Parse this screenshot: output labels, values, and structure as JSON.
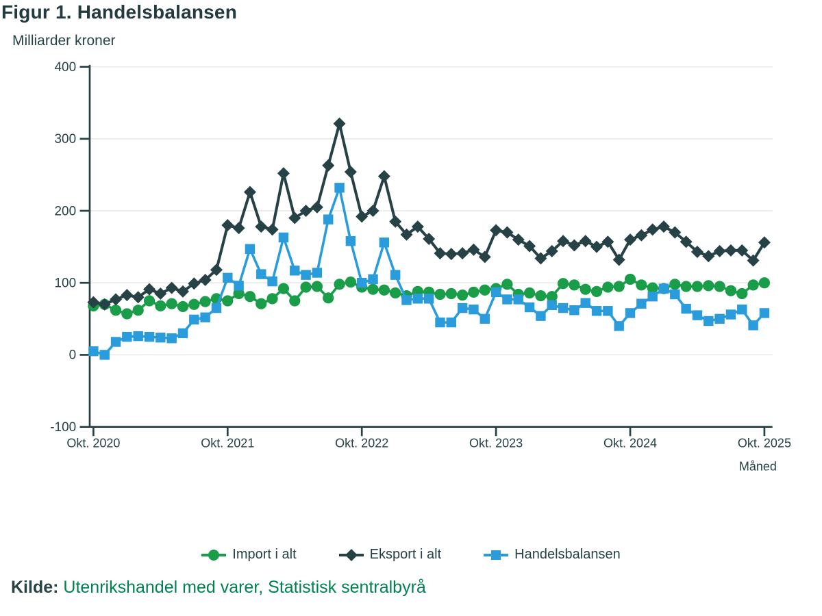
{
  "figure": {
    "title": "Figur 1. Handelsbalansen",
    "y_unit_label": "Milliarder kroner",
    "x_axis_label": "Måned",
    "source_prefix": "Kilde:",
    "source_text": "Utenrikshandel med varer, Statistisk sentralbyrå"
  },
  "colors": {
    "dark": "#274247",
    "grid": "#e7e7e7",
    "axis_text": "#274247",
    "link_green": "#00824d",
    "background": "#ffffff"
  },
  "legend": {
    "items": [
      {
        "label": "Import i alt",
        "marker": "circle",
        "color": "#1a9d49"
      },
      {
        "label": "Eksport i alt",
        "marker": "diamond",
        "color": "#274247"
      },
      {
        "label": "Handelsbalansen",
        "marker": "square",
        "color": "#2b9cdb"
      }
    ]
  },
  "chart_data": {
    "type": "line",
    "title": "Figur 1. Handelsbalansen",
    "ylabel": "Milliarder kroner",
    "xlabel": "Måned",
    "ylim": [
      -100,
      400
    ],
    "y_ticks": [
      400,
      300,
      200,
      100,
      0,
      -100
    ],
    "grid": "horizontal",
    "legend_position": "bottom",
    "x_frequency": "monthly",
    "x_tick_labels": [
      "Okt. 2020",
      "Okt. 2021",
      "Okt. 2022",
      "Okt. 2023",
      "Okt. 2024",
      "Okt. 2025"
    ],
    "x_tick_positions": [
      0,
      12,
      24,
      36,
      48,
      60
    ],
    "points_per_series": 61,
    "series": [
      {
        "name": "Import i alt",
        "marker": "circle",
        "color": "#1a9d49",
        "values": [
          68,
          70,
          62,
          57,
          62,
          75,
          68,
          71,
          67,
          70,
          74,
          78,
          75,
          85,
          81,
          71,
          78,
          92,
          75,
          94,
          95,
          79,
          98,
          101,
          94,
          91,
          90,
          86,
          82,
          88,
          87,
          84,
          85,
          83,
          87,
          90,
          92,
          98,
          84,
          86,
          82,
          81,
          99,
          97,
          91,
          88,
          94,
          95,
          105,
          97,
          93,
          92,
          98,
          95,
          95,
          96,
          95,
          89,
          85,
          97,
          100
        ]
      },
      {
        "name": "Eksport i alt",
        "marker": "diamond",
        "color": "#274247",
        "values": [
          73,
          70,
          77,
          83,
          80,
          91,
          85,
          93,
          88,
          99,
          104,
          118,
          180,
          176,
          226,
          178,
          174,
          252,
          190,
          200,
          205,
          263,
          321,
          254,
          192,
          200,
          248,
          185,
          167,
          178,
          161,
          141,
          140,
          141,
          146,
          136,
          173,
          170,
          160,
          151,
          134,
          144,
          158,
          152,
          158,
          150,
          157,
          132,
          160,
          166,
          174,
          178,
          170,
          157,
          143,
          137,
          144,
          145,
          145,
          131,
          156
        ]
      },
      {
        "name": "Handelsbalansen",
        "marker": "square",
        "color": "#2b9cdb",
        "values": [
          5,
          0,
          18,
          25,
          26,
          25,
          24,
          23,
          30,
          49,
          52,
          65,
          107,
          96,
          147,
          112,
          102,
          163,
          117,
          111,
          114,
          188,
          232,
          158,
          100,
          105,
          156,
          111,
          76,
          78,
          78,
          45,
          45,
          65,
          63,
          50,
          87,
          77,
          77,
          66,
          54,
          69,
          65,
          62,
          72,
          61,
          61,
          40,
          58,
          71,
          81,
          92,
          84,
          64,
          55,
          47,
          50,
          56,
          63,
          41,
          58
        ]
      }
    ]
  }
}
